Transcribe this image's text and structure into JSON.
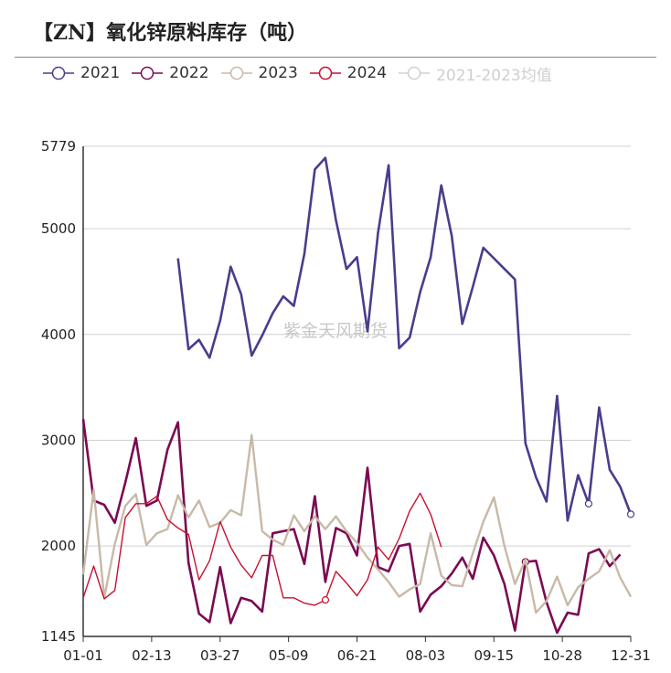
{
  "title": "【ZN】氧化锌原料库存（吨）",
  "watermark": "紫金天风期货",
  "chart_data": {
    "type": "line",
    "title": "【ZN】氧化锌原料库存（吨）",
    "xlabel": "",
    "ylabel": "",
    "x_ticks": [
      "01-01",
      "02-13",
      "03-27",
      "05-09",
      "06-21",
      "08-03",
      "09-15",
      "10-28",
      "12-31"
    ],
    "y_ticks": [
      1145,
      2000,
      3000,
      4000,
      5000,
      5779
    ],
    "ylim": [
      1145,
      5779
    ],
    "grid": "horizontal",
    "legend_position": "top",
    "series": [
      {
        "name": "2021",
        "color": "#4b3c8c",
        "marker_last": true,
        "marker_weeks": [
          48
        ],
        "start_week": 9,
        "values": [
          4720,
          3860,
          3950,
          3780,
          4130,
          4640,
          4380,
          3800,
          3990,
          4200,
          4360,
          4270,
          4760,
          5560,
          5670,
          5080,
          4620,
          4730,
          4030,
          4960,
          5600,
          3870,
          3970,
          4400,
          4730,
          5410,
          4930,
          4100,
          4450,
          4820,
          4720,
          4620,
          4520,
          2970,
          2650,
          2420,
          3420,
          2240,
          2670,
          2400,
          3310,
          2720,
          2560,
          2300
        ]
      },
      {
        "name": "2022",
        "color": "#7a0a52",
        "marker_weeks": [
          42
        ],
        "start_week": 0,
        "values": [
          3200,
          2430,
          2390,
          2220,
          2600,
          3020,
          2380,
          2430,
          2910,
          3170,
          1840,
          1360,
          1280,
          1800,
          1270,
          1510,
          1480,
          1380,
          2120,
          2140,
          2160,
          1830,
          2470,
          1660,
          2170,
          2120,
          1910,
          2740,
          1800,
          1760,
          2000,
          2020,
          1380,
          1540,
          1620,
          1740,
          1890,
          1690,
          2080,
          1910,
          1640,
          1200,
          1850,
          1860,
          1470,
          1180,
          1370,
          1350,
          1930,
          1970,
          1810,
          1920
        ]
      },
      {
        "name": "2023",
        "color": "#c8b9a8",
        "start_week": 0,
        "values": [
          1730,
          2530,
          1510,
          2020,
          2380,
          2490,
          2010,
          2120,
          2160,
          2480,
          2270,
          2430,
          2180,
          2220,
          2340,
          2290,
          3050,
          2140,
          2060,
          2010,
          2290,
          2140,
          2280,
          2160,
          2280,
          2140,
          2030,
          1890,
          1780,
          1660,
          1520,
          1590,
          1640,
          2120,
          1720,
          1630,
          1620,
          1930,
          2230,
          2460,
          2000,
          1640,
          1870,
          1370,
          1480,
          1710,
          1440,
          1610,
          1690,
          1760,
          1960,
          1700,
          1520
        ]
      },
      {
        "name": "2024",
        "color": "#c8102e",
        "marker_weeks": [
          23
        ],
        "start_week": 0,
        "values": [
          1510,
          1810,
          1500,
          1580,
          2270,
          2400,
          2400,
          2470,
          2250,
          2170,
          2110,
          1680,
          1860,
          2230,
          1990,
          1820,
          1700,
          1910,
          1910,
          1510,
          1510,
          1460,
          1440,
          1490,
          1760,
          1650,
          1530,
          1680,
          1990,
          1870,
          2070,
          2330,
          2500,
          2300,
          1990
        ]
      },
      {
        "name": "2021-2023均值",
        "color": "#cfcfcf",
        "visible": false,
        "values": []
      }
    ]
  }
}
